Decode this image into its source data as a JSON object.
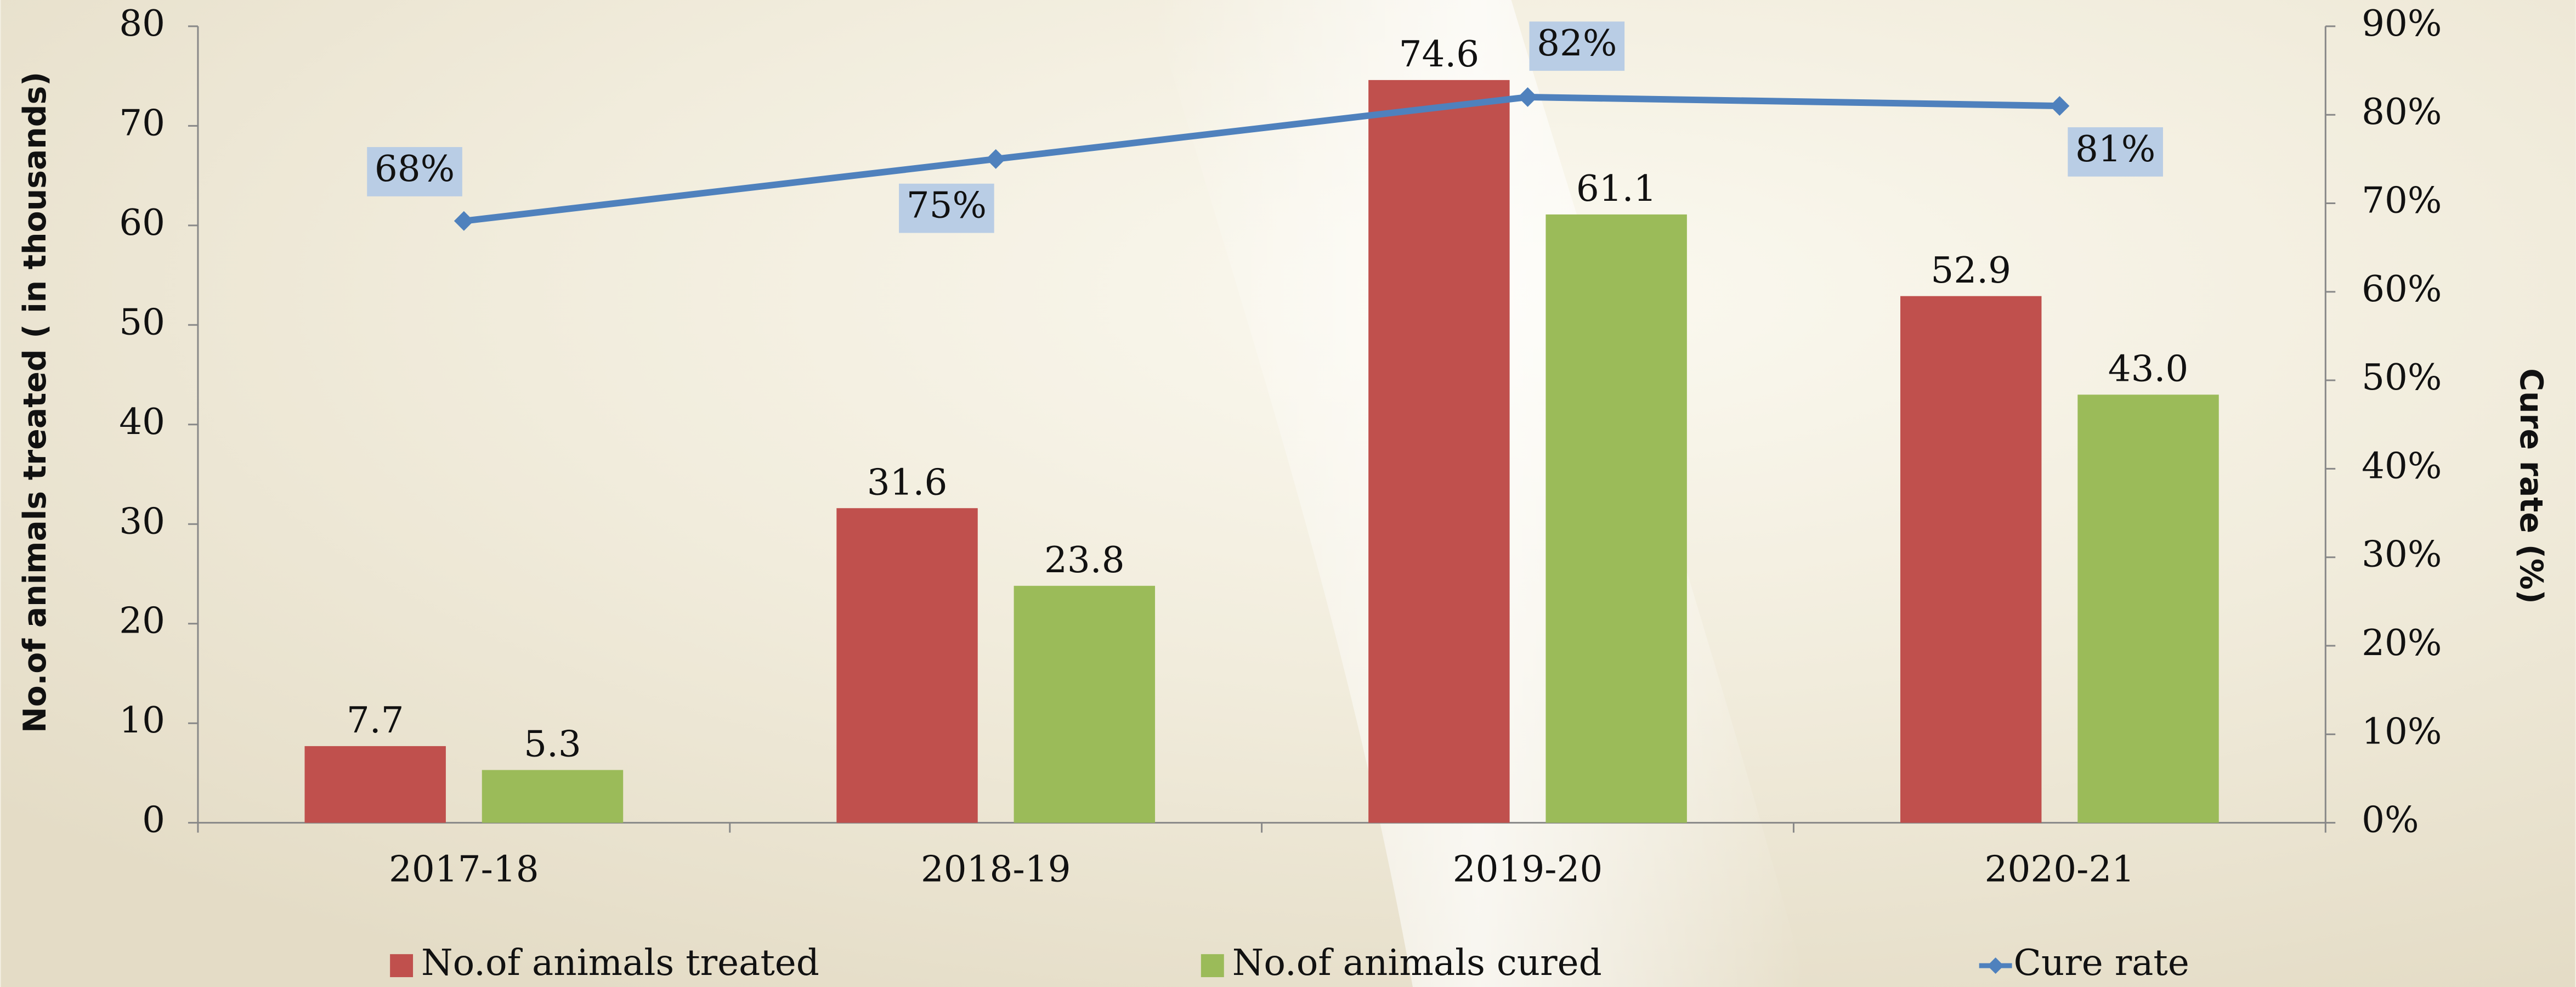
{
  "chart_data": {
    "type": "bar",
    "categories": [
      "2017-18",
      "2018-19",
      "2019-20",
      "2020-21"
    ],
    "y_label": "No.of animals treated ( in thousands)",
    "y2_label": "Cure rate (%)",
    "ylim": [
      0,
      80
    ],
    "yticks": [
      0,
      10,
      20,
      30,
      40,
      50,
      60,
      70,
      80
    ],
    "y2lim": [
      0,
      90
    ],
    "y2ticks": [
      {
        "value": 0,
        "label": "0%"
      },
      {
        "value": 10,
        "label": "10%"
      },
      {
        "value": 20,
        "label": "20%"
      },
      {
        "value": 30,
        "label": "30%"
      },
      {
        "value": 40,
        "label": "40%"
      },
      {
        "value": 50,
        "label": "50%"
      },
      {
        "value": 60,
        "label": "60%"
      },
      {
        "value": 70,
        "label": "70%"
      },
      {
        "value": 80,
        "label": "80%"
      },
      {
        "value": 90,
        "label": "90%"
      }
    ],
    "grid": false,
    "legend": "bottom",
    "series": [
      {
        "name": "No.of animals treated",
        "color": "#c0504d",
        "values": [
          7.7,
          31.6,
          74.6,
          52.9
        ],
        "value_labels": [
          "7.7",
          "31.6",
          "74.6",
          "52.9"
        ]
      },
      {
        "name": "No.of animals cured",
        "color": "#9bbb59",
        "values": [
          5.3,
          23.8,
          61.1,
          43
        ],
        "value_labels": [
          "5.3",
          "23.8",
          "61.1",
          "43.0"
        ]
      },
      {
        "name": "Cure rate",
        "type": "line",
        "axis": "y2",
        "color": "#4f81bd",
        "values": [
          68,
          75,
          82,
          81
        ],
        "value_labels": [
          "68%",
          "75%",
          "82%",
          "81%"
        ]
      }
    ]
  }
}
